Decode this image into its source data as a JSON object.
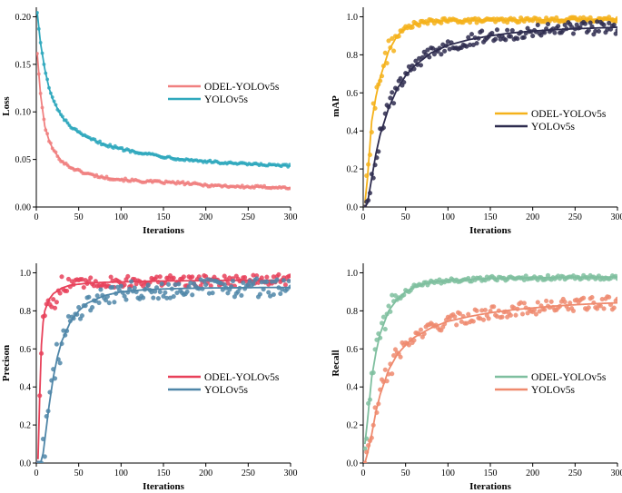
{
  "chart_data": [
    {
      "id": "loss",
      "type": "scatter",
      "title": "",
      "xlabel": "Iterations",
      "ylabel": "Loss",
      "xlim": [
        0,
        300
      ],
      "ylim": [
        0,
        0.21
      ],
      "xticks": [
        0,
        50,
        100,
        150,
        200,
        250,
        300
      ],
      "yticks": [
        0.0,
        0.05,
        0.1,
        0.15,
        0.2
      ],
      "ytick_labels": [
        "0.00",
        "0.05",
        "0.10",
        "0.15",
        "0.20"
      ],
      "legend_position": "center-right",
      "series": [
        {
          "name": "ODEL-YOLOv5s",
          "color": "#f08080",
          "x": [
            1,
            5,
            10,
            15,
            20,
            30,
            40,
            50,
            60,
            80,
            100,
            125,
            150,
            175,
            200,
            225,
            250,
            275,
            300
          ],
          "values": [
            0.162,
            0.118,
            0.085,
            0.07,
            0.06,
            0.048,
            0.042,
            0.038,
            0.035,
            0.031,
            0.029,
            0.027,
            0.026,
            0.025,
            0.023,
            0.022,
            0.021,
            0.021,
            0.02
          ]
        },
        {
          "name": "YOLOv5s",
          "color": "#2fa8bd",
          "x": [
            1,
            5,
            10,
            15,
            20,
            30,
            40,
            50,
            60,
            80,
            100,
            125,
            150,
            175,
            200,
            225,
            250,
            275,
            300
          ],
          "values": [
            0.205,
            0.172,
            0.145,
            0.125,
            0.112,
            0.095,
            0.085,
            0.078,
            0.073,
            0.066,
            0.061,
            0.057,
            0.053,
            0.05,
            0.048,
            0.046,
            0.045,
            0.044,
            0.043
          ]
        }
      ]
    },
    {
      "id": "map",
      "type": "scatter",
      "title": "",
      "xlabel": "Iterations",
      "ylabel": "mAP",
      "xlim": [
        0,
        300
      ],
      "ylim": [
        0,
        1.05
      ],
      "xticks": [
        0,
        50,
        100,
        150,
        200,
        250,
        300
      ],
      "yticks": [
        0.0,
        0.2,
        0.4,
        0.6,
        0.8,
        1.0
      ],
      "ytick_labels": [
        "0.0",
        "0.2",
        "0.4",
        "0.6",
        "0.8",
        "1.0"
      ],
      "legend_position": "center-right",
      "series": [
        {
          "name": "ODEL-YOLOv5s",
          "color": "#f5b21b",
          "x": [
            2,
            5,
            10,
            15,
            20,
            30,
            40,
            50,
            60,
            80,
            100,
            125,
            150,
            175,
            200,
            225,
            250,
            275,
            300
          ],
          "values": [
            0.02,
            0.15,
            0.45,
            0.58,
            0.68,
            0.82,
            0.9,
            0.94,
            0.96,
            0.975,
            0.98,
            0.98,
            0.98,
            0.982,
            0.984,
            0.985,
            0.986,
            0.987,
            0.988
          ]
        },
        {
          "name": "YOLOv5s",
          "color": "#2e2c4f",
          "x": [
            2,
            5,
            10,
            15,
            20,
            30,
            40,
            50,
            60,
            80,
            100,
            125,
            150,
            175,
            200,
            225,
            250,
            275,
            300
          ],
          "values": [
            0.0,
            0.02,
            0.15,
            0.28,
            0.38,
            0.52,
            0.62,
            0.69,
            0.74,
            0.81,
            0.85,
            0.88,
            0.9,
            0.915,
            0.925,
            0.932,
            0.937,
            0.941,
            0.945
          ]
        }
      ]
    },
    {
      "id": "precision",
      "type": "scatter",
      "title": "",
      "xlabel": "Iterations",
      "ylabel": "Precison",
      "xlim": [
        0,
        300
      ],
      "ylim": [
        0,
        1.05
      ],
      "xticks": [
        0,
        50,
        100,
        150,
        200,
        250,
        300
      ],
      "yticks": [
        0.0,
        0.2,
        0.4,
        0.6,
        0.8,
        1.0
      ],
      "ytick_labels": [
        "0.0",
        "0.2",
        "0.4",
        "0.6",
        "0.8",
        "1.0"
      ],
      "legend_position": "center-right",
      "series": [
        {
          "name": "ODEL-YOLOv5s",
          "color": "#e8415a",
          "x": [
            2,
            4,
            6,
            8,
            10,
            15,
            20,
            30,
            40,
            50,
            60,
            80,
            100,
            125,
            150,
            175,
            200,
            225,
            250,
            275,
            300
          ],
          "values": [
            0.02,
            0.35,
            0.62,
            0.74,
            0.8,
            0.86,
            0.89,
            0.92,
            0.935,
            0.94,
            0.945,
            0.95,
            0.952,
            0.955,
            0.957,
            0.958,
            0.959,
            0.96,
            0.96,
            0.961,
            0.961
          ]
        },
        {
          "name": "YOLOv5s",
          "color": "#4f86a8",
          "x": [
            2,
            5,
            8,
            10,
            15,
            20,
            25,
            30,
            40,
            50,
            60,
            80,
            100,
            125,
            150,
            175,
            200,
            225,
            250,
            275,
            300
          ],
          "values": [
            0.0,
            0.0,
            0.05,
            0.12,
            0.3,
            0.45,
            0.56,
            0.64,
            0.74,
            0.8,
            0.84,
            0.88,
            0.9,
            0.91,
            0.915,
            0.918,
            0.92,
            0.921,
            0.922,
            0.923,
            0.923
          ]
        }
      ]
    },
    {
      "id": "recall",
      "type": "scatter",
      "title": "",
      "xlabel": "Iterations",
      "ylabel": "Recall",
      "xlim": [
        0,
        300
      ],
      "ylim": [
        0,
        1.05
      ],
      "xticks": [
        0,
        50,
        100,
        150,
        200,
        250,
        300
      ],
      "yticks": [
        0.0,
        0.2,
        0.4,
        0.6,
        0.8,
        1.0
      ],
      "ytick_labels": [
        "0.0",
        "0.2",
        "0.4",
        "0.6",
        "0.8",
        "1.0"
      ],
      "legend_position": "center-right",
      "series": [
        {
          "name": "ODEL-YOLOv5s",
          "color": "#7fbf9f",
          "x": [
            2,
            5,
            10,
            15,
            20,
            30,
            40,
            50,
            60,
            80,
            100,
            125,
            150,
            175,
            200,
            225,
            250,
            275,
            300
          ],
          "values": [
            0.1,
            0.22,
            0.45,
            0.58,
            0.68,
            0.8,
            0.86,
            0.9,
            0.925,
            0.95,
            0.96,
            0.965,
            0.97,
            0.972,
            0.974,
            0.975,
            0.976,
            0.977,
            0.978
          ]
        },
        {
          "name": "YOLOv5s",
          "color": "#ef8a6e",
          "x": [
            2,
            5,
            10,
            15,
            20,
            30,
            40,
            50,
            60,
            80,
            100,
            125,
            150,
            175,
            200,
            225,
            250,
            275,
            300
          ],
          "values": [
            0.0,
            0.05,
            0.15,
            0.27,
            0.36,
            0.49,
            0.57,
            0.62,
            0.66,
            0.71,
            0.745,
            0.77,
            0.79,
            0.805,
            0.815,
            0.825,
            0.832,
            0.838,
            0.842
          ]
        }
      ]
    }
  ]
}
